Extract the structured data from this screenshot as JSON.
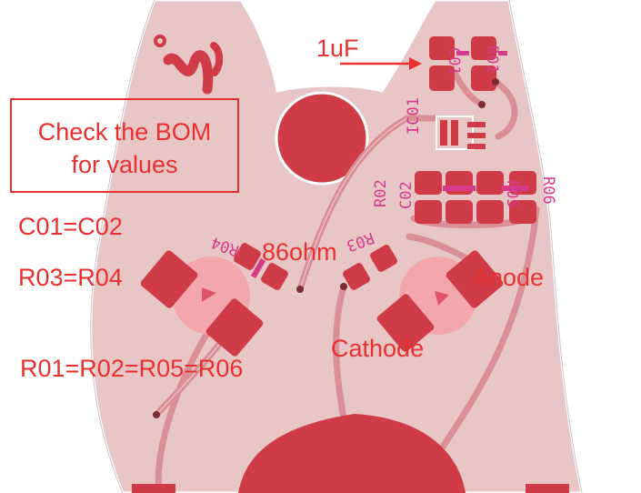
{
  "annotations": {
    "capacitor_value": "1uF",
    "bom_note_line1": "Check the BOM",
    "bom_note_line2": "for values",
    "eq_caps": "C01=C02",
    "eq_r34": "R03=R04",
    "eq_r_rest": "R01=R02=R05=R06",
    "resistor_value": "86ohm",
    "anode": "Anode",
    "cathode": "Cathode"
  },
  "silkscreen": {
    "r04": "R04",
    "r03": "R03",
    "r01": "R01",
    "c01": "C01",
    "r02": "R02",
    "c02": "C02",
    "r05": "R05",
    "r06": "R06",
    "ic01": "IC01"
  },
  "colors": {
    "board_fill": "#e9c6c6",
    "copper": "#cf3b46",
    "trace": "#d98f95",
    "annotation_red": "#e8302f",
    "silk_magenta": "#d63a8a",
    "led_pink": "#f3a7ad"
  }
}
